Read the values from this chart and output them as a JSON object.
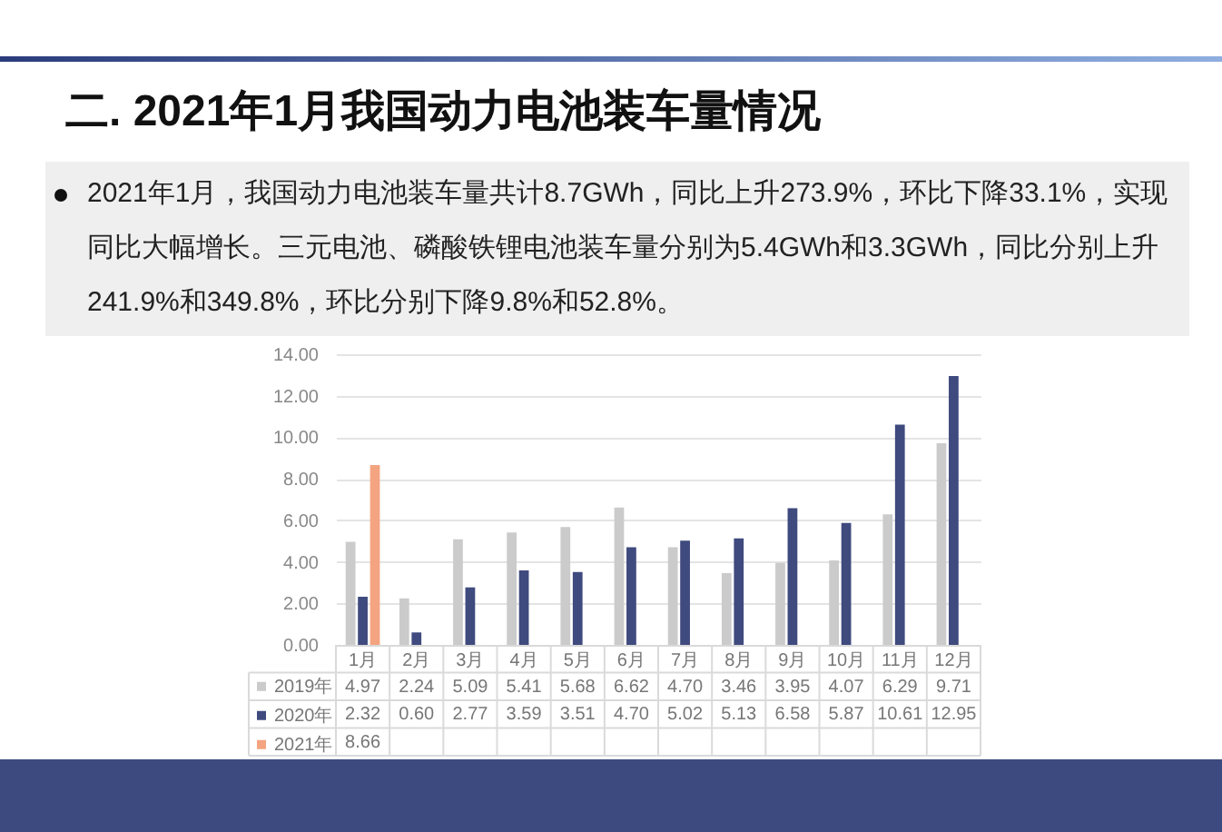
{
  "chart_data": {
    "type": "bar",
    "title": "二. 2021年1月我国动力电池装车量情况",
    "annotations": [
      "2021年1月，我国动力电池装车量共计8.7GWh，同比上升273.9%，环比下降33.1%，实现同比大幅增长。三元电池、磷酸铁锂电池装车量分别为5.4GWh和3.3GWh，同比分别上升241.9%和349.8%，环比分别下降9.8%和52.8%。"
    ],
    "categories": [
      "1月",
      "2月",
      "3月",
      "4月",
      "5月",
      "6月",
      "7月",
      "8月",
      "9月",
      "10月",
      "11月",
      "12月"
    ],
    "series": [
      {
        "name": "2019年",
        "color": "#cbcbcb",
        "values": [
          4.97,
          2.24,
          5.09,
          5.41,
          5.68,
          6.62,
          4.7,
          3.46,
          3.95,
          4.07,
          6.29,
          9.71
        ],
        "value_labels": [
          "4.97",
          "2.24",
          "5.09",
          "5.41",
          "5.68",
          "6.62",
          "4.70",
          "3.46",
          "3.95",
          "4.07",
          "6.29",
          "9.71"
        ]
      },
      {
        "name": "2020年",
        "color": "#3f4a7e",
        "values": [
          2.32,
          0.6,
          2.77,
          3.59,
          3.51,
          4.7,
          5.02,
          5.13,
          6.58,
          5.87,
          10.61,
          12.95
        ],
        "value_labels": [
          "2.32",
          "0.60",
          "2.77",
          "3.59",
          "3.51",
          "4.70",
          "5.02",
          "5.13",
          "6.58",
          "5.87",
          "10.61",
          "12.95"
        ]
      },
      {
        "name": "2021年",
        "color": "#f4a480",
        "values": [
          8.66,
          null,
          null,
          null,
          null,
          null,
          null,
          null,
          null,
          null,
          null,
          null
        ],
        "value_labels": [
          "8.66",
          null,
          null,
          null,
          null,
          null,
          null,
          null,
          null,
          null,
          null,
          null
        ]
      }
    ],
    "ylim": [
      0,
      14
    ],
    "yticks": [
      {
        "value": 0,
        "label": "0.00"
      },
      {
        "value": 2,
        "label": "2.00"
      },
      {
        "value": 4,
        "label": "4.00"
      },
      {
        "value": 6,
        "label": "6.00"
      },
      {
        "value": 8,
        "label": "8.00"
      },
      {
        "value": 10,
        "label": "10.00"
      },
      {
        "value": 12,
        "label": "12.00"
      },
      {
        "value": 14,
        "label": "14.00"
      }
    ],
    "grid": "y",
    "legend": "bottom left"
  }
}
